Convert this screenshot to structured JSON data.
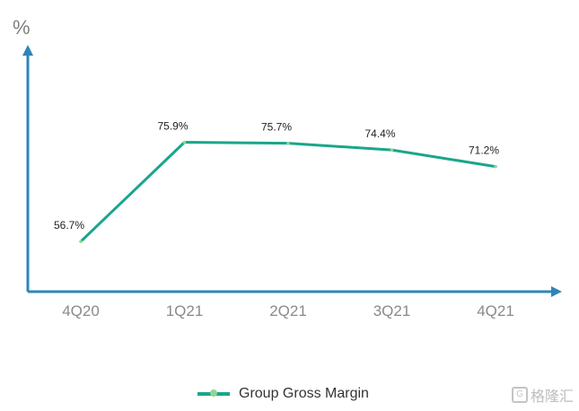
{
  "chart_data": {
    "type": "line",
    "title": "",
    "ylabel": "%",
    "xlabel": "",
    "categories": [
      "4Q20",
      "1Q21",
      "2Q21",
      "3Q21",
      "4Q21"
    ],
    "series": [
      {
        "name": "Group Gross Margin",
        "values": [
          56.7,
          75.9,
          75.7,
          74.4,
          71.2
        ],
        "labels": [
          "56.7%",
          "75.9%",
          "75.7%",
          "74.4%",
          "71.2%"
        ],
        "color": "#1aa68a"
      }
    ],
    "ylim": [
      47,
      93
    ],
    "grid": false,
    "legend_position": "bottom-center"
  },
  "colors": {
    "axis": "#2e86b8",
    "line": "#1aa68a",
    "marker": "#8fd694"
  },
  "watermark": {
    "icon": "G",
    "text": "格隆汇"
  }
}
